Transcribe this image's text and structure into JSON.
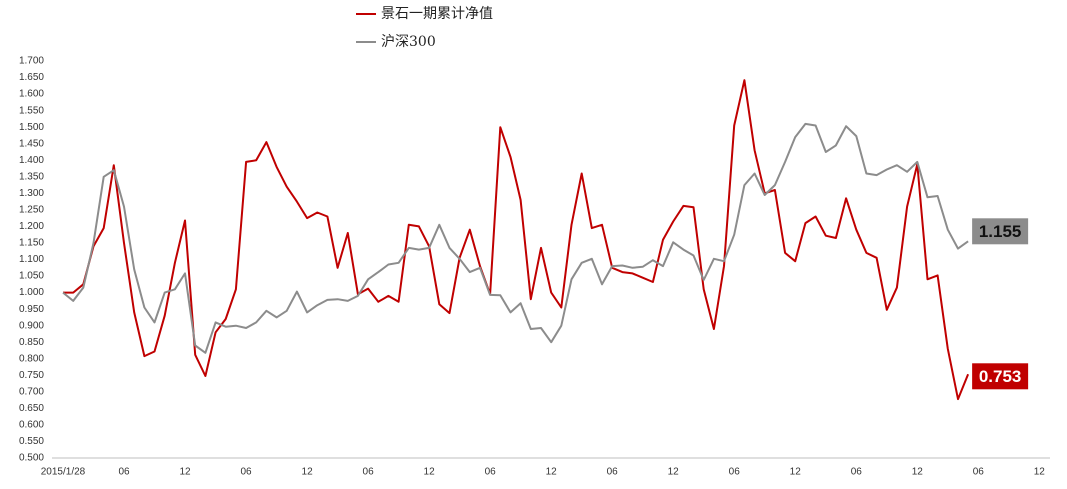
{
  "chart_data": {
    "type": "line",
    "x": [
      "2015/1/28",
      null,
      null,
      null,
      null,
      null,
      "06",
      null,
      null,
      null,
      null,
      null,
      "12",
      null,
      null,
      null,
      null,
      null,
      "06",
      null,
      null,
      null,
      null,
      null,
      "12",
      null,
      null,
      null,
      null,
      null,
      "06",
      null,
      null,
      null,
      null,
      null,
      "12",
      null,
      null,
      null,
      null,
      null,
      "06",
      null,
      null,
      null,
      null,
      null,
      "12",
      null,
      null,
      null,
      null,
      null,
      "06",
      null,
      null,
      null,
      null,
      null,
      "12",
      null,
      null,
      null,
      null,
      null,
      "06",
      null,
      null,
      null,
      null,
      null,
      "12",
      null,
      null,
      null,
      null,
      null,
      "06",
      null,
      null,
      null,
      null,
      null,
      "12",
      null,
      null,
      null,
      null,
      null,
      "06",
      null,
      null,
      null,
      null,
      null,
      "12"
    ],
    "series": [
      {
        "name": "景石一期累计净值",
        "color": "#c00000",
        "values": [
          1.0,
          1.0,
          1.025,
          1.14,
          1.195,
          1.385,
          1.15,
          0.94,
          0.808,
          0.822,
          0.93,
          1.09,
          1.218,
          0.812,
          0.748,
          0.88,
          0.92,
          1.01,
          1.395,
          1.4,
          1.455,
          1.38,
          1.32,
          1.275,
          1.225,
          1.242,
          1.23,
          1.075,
          1.18,
          0.995,
          1.012,
          0.972,
          0.99,
          0.972,
          1.205,
          1.2,
          1.14,
          0.965,
          0.938,
          1.105,
          1.19,
          1.08,
          0.995,
          1.5,
          1.41,
          1.28,
          0.98,
          1.135,
          1.0,
          0.955,
          1.205,
          1.36,
          1.195,
          1.205,
          1.075,
          1.062,
          1.058,
          1.045,
          1.032,
          1.16,
          1.215,
          1.262,
          1.258,
          1.01,
          0.89,
          1.08,
          1.505,
          1.642,
          1.43,
          1.3,
          1.31,
          1.12,
          1.095,
          1.21,
          1.23,
          1.172,
          1.165,
          1.285,
          1.19,
          1.12,
          1.105,
          0.948,
          1.015,
          1.26,
          1.388,
          1.04,
          1.052,
          0.83,
          0.678,
          0.753,
          null,
          null,
          null,
          null,
          null,
          null,
          null
        ]
      },
      {
        "name": "沪深300",
        "color": "#8c8c8c",
        "values": [
          1.0,
          0.975,
          1.015,
          1.15,
          1.35,
          1.37,
          1.26,
          1.07,
          0.955,
          0.91,
          1.0,
          1.01,
          1.058,
          0.84,
          0.818,
          0.91,
          0.897,
          0.9,
          0.893,
          0.91,
          0.945,
          0.925,
          0.945,
          1.003,
          0.94,
          0.962,
          0.978,
          0.98,
          0.975,
          0.99,
          1.04,
          1.062,
          1.085,
          1.09,
          1.135,
          1.13,
          1.135,
          1.205,
          1.135,
          1.102,
          1.062,
          1.075,
          0.993,
          0.992,
          0.94,
          0.968,
          0.89,
          0.893,
          0.85,
          0.9,
          1.04,
          1.09,
          1.102,
          1.025,
          1.08,
          1.082,
          1.075,
          1.078,
          1.098,
          1.08,
          1.152,
          1.13,
          1.112,
          1.038,
          1.102,
          1.095,
          1.175,
          1.325,
          1.36,
          1.295,
          1.325,
          1.395,
          1.47,
          1.51,
          1.505,
          1.425,
          1.445,
          1.503,
          1.473,
          1.36,
          1.355,
          1.372,
          1.385,
          1.365,
          1.395,
          1.288,
          1.292,
          1.19,
          1.133,
          1.155,
          null,
          null,
          null,
          null,
          null,
          null,
          null
        ]
      }
    ],
    "ylim": [
      0.5,
      1.7
    ],
    "yticks": [
      {
        "value": 0.5,
        "label": "0.500"
      },
      {
        "value": 0.55,
        "label": "0.550"
      },
      {
        "value": 0.6,
        "label": "0.600"
      },
      {
        "value": 0.65,
        "label": "0.650"
      },
      {
        "value": 0.7,
        "label": "0.700"
      },
      {
        "value": 0.75,
        "label": "0.750"
      },
      {
        "value": 0.8,
        "label": "0.800"
      },
      {
        "value": 0.85,
        "label": "0.850"
      },
      {
        "value": 0.9,
        "label": "0.900"
      },
      {
        "value": 0.95,
        "label": "0.950"
      },
      {
        "value": 1.0,
        "label": "1.000"
      },
      {
        "value": 1.05,
        "label": "1.050"
      },
      {
        "value": 1.1,
        "label": "1.100"
      },
      {
        "value": 1.15,
        "label": "1.150"
      },
      {
        "value": 1.2,
        "label": "1.200"
      },
      {
        "value": 1.25,
        "label": "1.250"
      },
      {
        "value": 1.3,
        "label": "1.300"
      },
      {
        "value": 1.35,
        "label": "1.350"
      },
      {
        "value": 1.4,
        "label": "1.400"
      },
      {
        "value": 1.45,
        "label": "1.450"
      },
      {
        "value": 1.5,
        "label": "1.500"
      },
      {
        "value": 1.55,
        "label": "1.550"
      },
      {
        "value": 1.6,
        "label": "1.600"
      },
      {
        "value": 1.65,
        "label": "1.650"
      },
      {
        "value": 1.7,
        "label": "1.700"
      }
    ],
    "grid": false
  }
}
